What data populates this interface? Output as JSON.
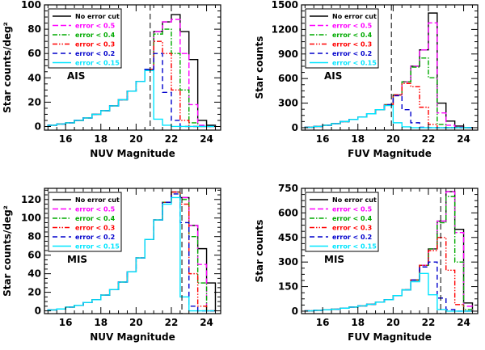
{
  "chart_data": [
    {
      "type": "histogram",
      "panel": "NUV AIS",
      "xlabel": "NUV Magnitude",
      "ylabel": "Star counts/deg²",
      "annotation": "AIS",
      "xlim": [
        14.8,
        24.8
      ],
      "ylim": [
        -3,
        100
      ],
      "xticks": [
        16,
        18,
        20,
        22,
        24
      ],
      "yticks": [
        0,
        20,
        40,
        60,
        80,
        100
      ],
      "cutoff": 20.8,
      "bins": [
        15.0,
        15.5,
        16.0,
        16.5,
        17.0,
        17.5,
        18.0,
        18.5,
        19.0,
        19.5,
        20.0,
        20.5,
        21.0,
        21.5,
        22.0,
        22.5,
        23.0,
        23.5,
        24.0
      ],
      "series": [
        {
          "name": "No error cut",
          "color": "#000000",
          "dash": "solid",
          "values": [
            1,
            2,
            3,
            5,
            7,
            10,
            13,
            17,
            22,
            29,
            37,
            47,
            78,
            86,
            92,
            78,
            55,
            5,
            1
          ]
        },
        {
          "name": "error < 0.5",
          "color": "#ff00ff",
          "dash": "longdash",
          "values": [
            1,
            2,
            3,
            5,
            7,
            10,
            13,
            17,
            22,
            29,
            37,
            47,
            78,
            86,
            88,
            60,
            18,
            1,
            0
          ]
        },
        {
          "name": "error < 0.4",
          "color": "#00aa00",
          "dash": "dashdot",
          "values": [
            1,
            2,
            3,
            5,
            7,
            10,
            13,
            17,
            22,
            29,
            37,
            47,
            76,
            80,
            60,
            30,
            3,
            0,
            0
          ]
        },
        {
          "name": "error < 0.3",
          "color": "#ff0000",
          "dash": "dashdotdot",
          "values": [
            1,
            2,
            3,
            5,
            7,
            10,
            13,
            17,
            22,
            29,
            37,
            47,
            70,
            60,
            30,
            5,
            0,
            0,
            0
          ]
        },
        {
          "name": "error < 0.2",
          "color": "#0000cc",
          "dash": "dashed",
          "values": [
            1,
            2,
            3,
            5,
            7,
            10,
            13,
            17,
            22,
            29,
            37,
            47,
            60,
            28,
            5,
            0,
            0,
            0,
            0
          ]
        },
        {
          "name": "error < 0.15",
          "color": "#00e5ff",
          "dash": "solid",
          "values": [
            1,
            2,
            3,
            5,
            7,
            10,
            13,
            17,
            22,
            29,
            37,
            46,
            6,
            1,
            0,
            0,
            0,
            0,
            0
          ]
        }
      ]
    },
    {
      "type": "histogram",
      "panel": "FUV AIS",
      "xlabel": "FUV Magnitude",
      "ylabel": "Star counts",
      "annotation": "AIS",
      "xlim": [
        14.8,
        24.8
      ],
      "ylim": [
        -30,
        1500
      ],
      "xticks": [
        16,
        18,
        20,
        22,
        24
      ],
      "yticks": [
        0,
        300,
        600,
        900,
        1200,
        1500
      ],
      "cutoff": 19.9,
      "bins": [
        15.0,
        15.5,
        16.0,
        16.5,
        17.0,
        17.5,
        18.0,
        18.5,
        19.0,
        19.5,
        20.0,
        20.5,
        21.0,
        21.5,
        22.0,
        22.5,
        23.0,
        23.5,
        24.0
      ],
      "series": [
        {
          "name": "No error cut",
          "color": "#000000",
          "dash": "solid",
          "values": [
            5,
            15,
            30,
            50,
            75,
            100,
            130,
            170,
            220,
            280,
            400,
            560,
            750,
            950,
            1400,
            300,
            80,
            20,
            0
          ]
        },
        {
          "name": "error < 0.5",
          "color": "#ff00ff",
          "dash": "longdash",
          "values": [
            5,
            15,
            30,
            50,
            75,
            100,
            130,
            170,
            220,
            280,
            400,
            560,
            750,
            950,
            1280,
            180,
            30,
            5,
            0
          ]
        },
        {
          "name": "error < 0.4",
          "color": "#00aa00",
          "dash": "dashdot",
          "values": [
            5,
            15,
            30,
            50,
            75,
            100,
            130,
            170,
            220,
            280,
            400,
            560,
            740,
            850,
            610,
            40,
            0,
            0,
            0
          ]
        },
        {
          "name": "error < 0.3",
          "color": "#ff0000",
          "dash": "dashdotdot",
          "values": [
            5,
            15,
            30,
            50,
            75,
            100,
            130,
            170,
            220,
            280,
            400,
            540,
            500,
            250,
            40,
            0,
            0,
            0,
            0
          ]
        },
        {
          "name": "error < 0.2",
          "color": "#0000cc",
          "dash": "dashed",
          "values": [
            5,
            15,
            30,
            50,
            75,
            100,
            130,
            170,
            220,
            280,
            390,
            220,
            60,
            5,
            0,
            0,
            0,
            0,
            0
          ]
        },
        {
          "name": "error < 0.15",
          "color": "#00e5ff",
          "dash": "solid",
          "values": [
            5,
            15,
            30,
            50,
            75,
            100,
            130,
            170,
            220,
            270,
            60,
            10,
            0,
            0,
            0,
            0,
            0,
            0,
            0
          ]
        }
      ]
    },
    {
      "type": "histogram",
      "panel": "NUV MIS",
      "xlabel": "NUV Magnitude",
      "ylabel": "Star counts/deg²",
      "annotation": "MIS",
      "xlim": [
        14.8,
        24.8
      ],
      "ylim": [
        -3,
        132
      ],
      "xticks": [
        16,
        18,
        20,
        22,
        24
      ],
      "yticks": [
        0,
        20,
        40,
        60,
        80,
        100,
        120
      ],
      "cutoff": 22.6,
      "bins": [
        15.0,
        15.5,
        16.0,
        16.5,
        17.0,
        17.5,
        18.0,
        18.5,
        19.0,
        19.5,
        20.0,
        20.5,
        21.0,
        21.5,
        22.0,
        22.5,
        23.0,
        23.5,
        24.0
      ],
      "series": [
        {
          "name": "No error cut",
          "color": "#000000",
          "dash": "solid",
          "values": [
            1,
            2,
            4,
            6,
            9,
            12,
            17,
            23,
            31,
            42,
            57,
            77,
            98,
            117,
            128,
            122,
            92,
            67,
            30
          ]
        },
        {
          "name": "error < 0.5",
          "color": "#ff00ff",
          "dash": "longdash",
          "values": [
            1,
            2,
            4,
            6,
            9,
            12,
            17,
            23,
            31,
            42,
            57,
            77,
            98,
            117,
            128,
            122,
            92,
            50,
            0
          ]
        },
        {
          "name": "error < 0.4",
          "color": "#00aa00",
          "dash": "dashdot",
          "values": [
            1,
            2,
            4,
            6,
            9,
            12,
            17,
            23,
            31,
            42,
            57,
            77,
            98,
            117,
            128,
            120,
            80,
            30,
            0
          ]
        },
        {
          "name": "error < 0.3",
          "color": "#ff0000",
          "dash": "dashdotdot",
          "values": [
            1,
            2,
            4,
            6,
            9,
            12,
            17,
            23,
            31,
            42,
            57,
            77,
            98,
            117,
            128,
            115,
            40,
            5,
            0
          ]
        },
        {
          "name": "error < 0.2",
          "color": "#0000cc",
          "dash": "dashed",
          "values": [
            1,
            2,
            4,
            6,
            9,
            12,
            17,
            23,
            31,
            42,
            57,
            77,
            98,
            117,
            126,
            95,
            5,
            0,
            0
          ]
        },
        {
          "name": "error < 0.15",
          "color": "#00e5ff",
          "dash": "solid",
          "values": [
            1,
            2,
            4,
            6,
            9,
            12,
            17,
            23,
            31,
            42,
            57,
            77,
            98,
            115,
            122,
            15,
            0,
            0,
            0
          ]
        }
      ]
    },
    {
      "type": "histogram",
      "panel": "FUV MIS",
      "xlabel": "FUV Magnitude",
      "ylabel": "Star counts",
      "annotation": "MIS",
      "xlim": [
        14.8,
        24.8
      ],
      "ylim": [
        -15,
        750
      ],
      "xticks": [
        16,
        18,
        20,
        22,
        24
      ],
      "yticks": [
        0,
        150,
        300,
        450,
        600,
        750
      ],
      "cutoff": 22.7,
      "bins": [
        15.0,
        15.5,
        16.0,
        16.5,
        17.0,
        17.5,
        18.0,
        18.5,
        19.0,
        19.5,
        20.0,
        20.5,
        21.0,
        21.5,
        22.0,
        22.5,
        23.0,
        23.5,
        24.0
      ],
      "series": [
        {
          "name": "No error cut",
          "color": "#000000",
          "dash": "solid",
          "values": [
            2,
            5,
            8,
            12,
            18,
            25,
            32,
            42,
            55,
            70,
            95,
            130,
            190,
            280,
            380,
            550,
            730,
            500,
            50
          ]
        },
        {
          "name": "error < 0.5",
          "color": "#ff00ff",
          "dash": "longdash",
          "values": [
            2,
            5,
            8,
            12,
            18,
            25,
            32,
            42,
            55,
            70,
            95,
            130,
            190,
            280,
            380,
            550,
            730,
            480,
            30
          ]
        },
        {
          "name": "error < 0.4",
          "color": "#00aa00",
          "dash": "dashdot",
          "values": [
            2,
            5,
            8,
            12,
            18,
            25,
            32,
            42,
            55,
            70,
            95,
            130,
            190,
            280,
            380,
            540,
            700,
            300,
            10
          ]
        },
        {
          "name": "error < 0.3",
          "color": "#ff0000",
          "dash": "dashdotdot",
          "values": [
            2,
            5,
            8,
            12,
            18,
            25,
            32,
            42,
            55,
            70,
            95,
            130,
            190,
            280,
            370,
            450,
            250,
            40,
            0
          ]
        },
        {
          "name": "error < 0.2",
          "color": "#0000cc",
          "dash": "dashed",
          "values": [
            2,
            5,
            8,
            12,
            18,
            25,
            32,
            42,
            55,
            70,
            95,
            130,
            190,
            270,
            300,
            80,
            10,
            0,
            0
          ]
        },
        {
          "name": "error < 0.15",
          "color": "#00e5ff",
          "dash": "solid",
          "values": [
            2,
            5,
            8,
            12,
            18,
            25,
            32,
            42,
            55,
            70,
            95,
            130,
            180,
            230,
            100,
            10,
            0,
            0,
            0
          ]
        }
      ]
    }
  ]
}
